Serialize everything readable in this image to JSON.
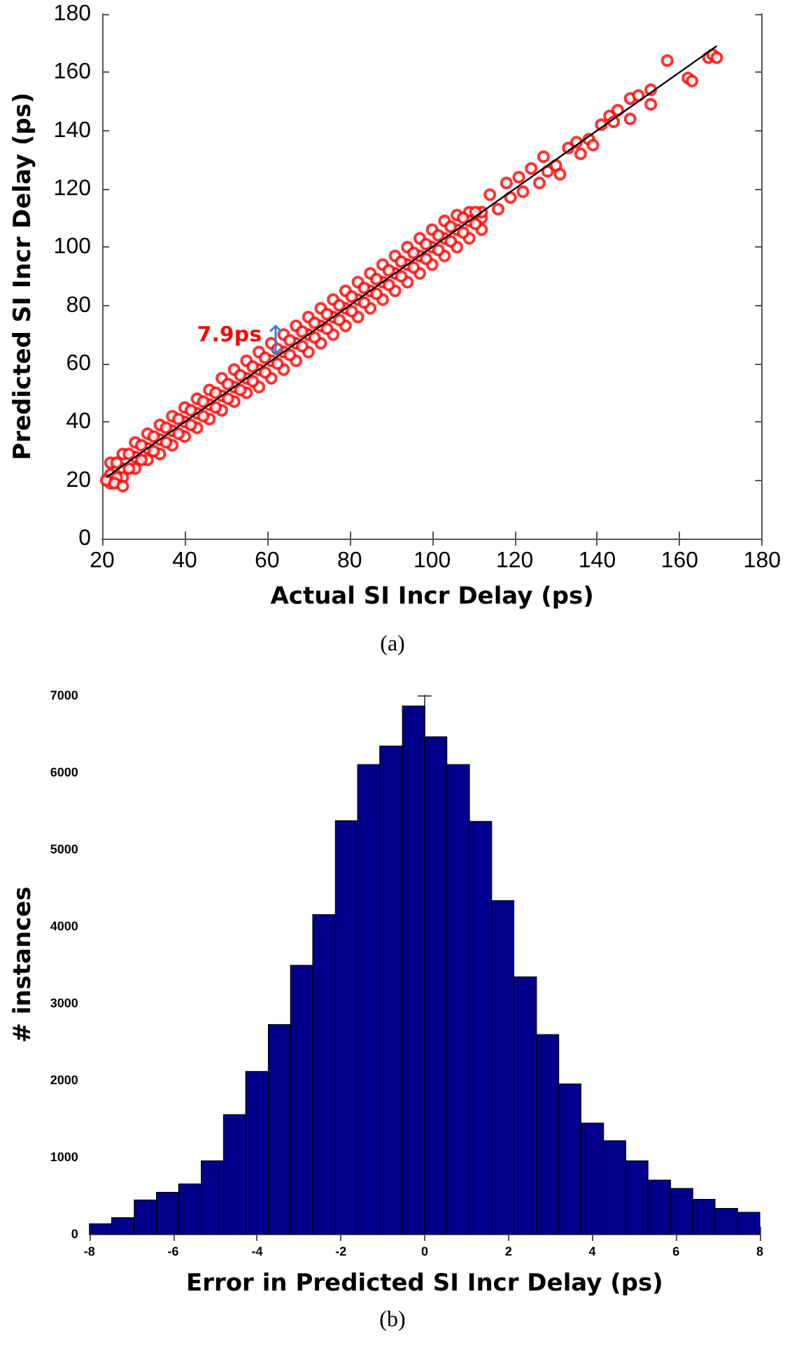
{
  "chart_data": [
    {
      "type": "scatter",
      "xlabel": "Actual SI Incr Delay (ps)",
      "ylabel": "Predicted SI Incr Delay (ps)",
      "xlim": [
        20,
        180
      ],
      "ylim": [
        0,
        180
      ],
      "xticks": [
        20,
        40,
        60,
        80,
        100,
        120,
        140,
        160,
        180
      ],
      "yticks": [
        0,
        20,
        40,
        60,
        80,
        100,
        120,
        140,
        160,
        180
      ],
      "marker": "circle",
      "annotations": [
        {
          "text": "7.9ps",
          "x": 62,
          "y": 68
        },
        "(a)"
      ],
      "series": [
        {
          "color": "#ff0000",
          "x": [
            22,
            22,
            22,
            25,
            25,
            25,
            28,
            28,
            28,
            31,
            31,
            31,
            34,
            34,
            34,
            37,
            37,
            37,
            40,
            40,
            40,
            43,
            43,
            43,
            46,
            46,
            46,
            49,
            49,
            49,
            52,
            52,
            52,
            55,
            55,
            55,
            58,
            58,
            58,
            61,
            61,
            61,
            64,
            64,
            64,
            67,
            67,
            67,
            70,
            70,
            70,
            73,
            73,
            73,
            76,
            76,
            76,
            79,
            79,
            79,
            82,
            82,
            82,
            85,
            85,
            85,
            88,
            88,
            88,
            91,
            91,
            91,
            94,
            94,
            94,
            97,
            97,
            97,
            100,
            100,
            100,
            103,
            103,
            103,
            106,
            106,
            106,
            109,
            109,
            109,
            112,
            112,
            112,
            23.5,
            23.5,
            26.5,
            26.5,
            29.5,
            29.5,
            32.5,
            32.5,
            35.5,
            35.5,
            38.5,
            38.5,
            41.5,
            41.5,
            44.5,
            44.5,
            47.5,
            47.5,
            50.5,
            50.5,
            53.5,
            53.5,
            56.5,
            56.5,
            59.5,
            59.5,
            62.5,
            62.5,
            65.5,
            65.5,
            68.5,
            68.5,
            71.5,
            71.5,
            74.5,
            74.5,
            77.5,
            77.5,
            80.5,
            80.5,
            83.5,
            83.5,
            86.5,
            86.5,
            89.5,
            89.5,
            92.5,
            92.5,
            95.5,
            95.5,
            98.5,
            98.5,
            101.5,
            101.5,
            104.5,
            104.5,
            107.5,
            107.5,
            110.5,
            110.5,
            114,
            116,
            118,
            119,
            121,
            122,
            124,
            126,
            127,
            128,
            130,
            131,
            133,
            135,
            136,
            138,
            139,
            141,
            143,
            144,
            145,
            148,
            148,
            150,
            153,
            153,
            157,
            162,
            163,
            167,
            168,
            169,
            21,
            23,
            25
          ],
          "values": [
            26,
            22,
            19,
            29,
            24,
            21,
            33,
            28,
            24,
            36,
            31,
            27,
            39,
            34,
            29,
            42,
            37,
            32,
            45,
            40,
            35,
            48,
            43,
            38,
            51,
            46,
            41,
            55,
            49,
            44,
            58,
            52,
            47,
            61,
            55,
            50,
            64,
            58,
            52,
            67,
            61,
            55,
            70,
            64,
            58,
            73,
            67,
            61,
            76,
            70,
            64,
            79,
            73,
            67,
            82,
            76,
            70,
            85,
            79,
            73,
            88,
            82,
            76,
            91,
            85,
            79,
            94,
            88,
            82,
            97,
            91,
            85,
            100,
            94,
            88,
            103,
            97,
            91,
            106,
            100,
            94,
            109,
            103,
            97,
            111,
            106,
            100,
            112,
            109,
            103,
            110,
            112,
            106,
            26,
            21,
            29,
            24,
            32,
            27,
            35,
            30,
            38,
            33,
            41,
            36,
            44,
            39,
            47,
            42,
            50,
            45,
            53,
            48,
            56,
            51,
            59,
            54,
            62,
            57,
            65,
            60,
            68,
            63,
            71,
            66,
            74,
            69,
            77,
            72,
            80,
            75,
            83,
            78,
            86,
            81,
            89,
            84,
            92,
            87,
            95,
            90,
            98,
            93,
            101,
            96,
            104,
            99,
            107,
            102,
            110,
            105,
            112,
            108,
            118,
            113,
            122,
            117,
            124,
            119,
            127,
            122,
            131,
            126,
            128,
            125,
            134,
            136,
            132,
            137,
            135,
            142,
            145,
            143,
            147,
            144,
            151,
            152,
            154,
            149,
            164,
            158,
            157,
            165,
            166,
            165,
            20,
            19,
            18
          ]
        },
        {
          "type": "line",
          "color": "#000000",
          "marker": "none",
          "x": [
            21,
            169
          ],
          "values": [
            21,
            169
          ]
        }
      ]
    },
    {
      "type": "histogram",
      "xlabel": "Error in Predicted SI Incr Delay (ps)",
      "ylabel": "# instances",
      "xlim": [
        -8,
        8
      ],
      "ylim": [
        0,
        7000
      ],
      "xticks": [
        -8,
        -6,
        -4,
        -2,
        0,
        2,
        4,
        6,
        8
      ],
      "yticks": [
        0,
        1000,
        2000,
        3000,
        4000,
        5000,
        6000,
        7000
      ],
      "color": "#00008b",
      "annotations": [
        "(b)"
      ],
      "bins": [
        -8,
        -7.47,
        -6.93,
        -6.4,
        -5.87,
        -5.33,
        -4.8,
        -4.27,
        -3.73,
        -3.2,
        -2.67,
        -2.13,
        -1.6,
        -1.07,
        -0.53,
        0,
        0.53,
        1.07,
        1.6,
        2.13,
        2.67,
        3.2,
        3.73,
        4.27,
        4.8,
        5.33,
        5.87,
        6.4,
        6.93,
        7.47,
        8
      ],
      "values": [
        130,
        210,
        440,
        540,
        650,
        950,
        1550,
        2110,
        2720,
        3490,
        4150,
        5370,
        6100,
        6340,
        6860,
        6460,
        6100,
        5360,
        4330,
        3340,
        2590,
        1950,
        1440,
        1210,
        950,
        700,
        590,
        450,
        330,
        280
      ]
    }
  ]
}
